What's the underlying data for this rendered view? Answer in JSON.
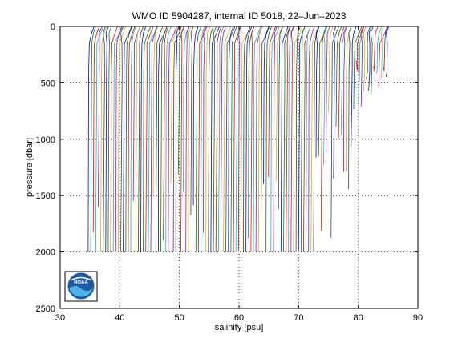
{
  "chart_data": {
    "type": "line",
    "title": "WMO ID 5904287, internal ID 5018, 22–Jun–2023",
    "xlabel": "salinity [psu]",
    "ylabel": "pressure [dbar]",
    "xlim": [
      30,
      90
    ],
    "ylim": [
      0,
      2500
    ],
    "y_reversed": true,
    "grid": true,
    "x_ticks": [
      "30",
      "40",
      "50",
      "60",
      "70",
      "80",
      "90"
    ],
    "y_ticks": [
      "0",
      "500",
      "1000",
      "1500",
      "2000",
      "2500"
    ],
    "series_colors": [
      "#0000ff",
      "#008000",
      "#ff0000",
      "#00bfbf",
      "#bf00bf",
      "#bfbf00",
      "#404040"
    ],
    "profiles": {
      "count": 120,
      "first_offset_psu": 34.7,
      "offset_step_psu": 0.42,
      "max_pressure_dbar": 2000,
      "surface_pressure_dbar": 5
    },
    "logo": "noaa-logo"
  }
}
